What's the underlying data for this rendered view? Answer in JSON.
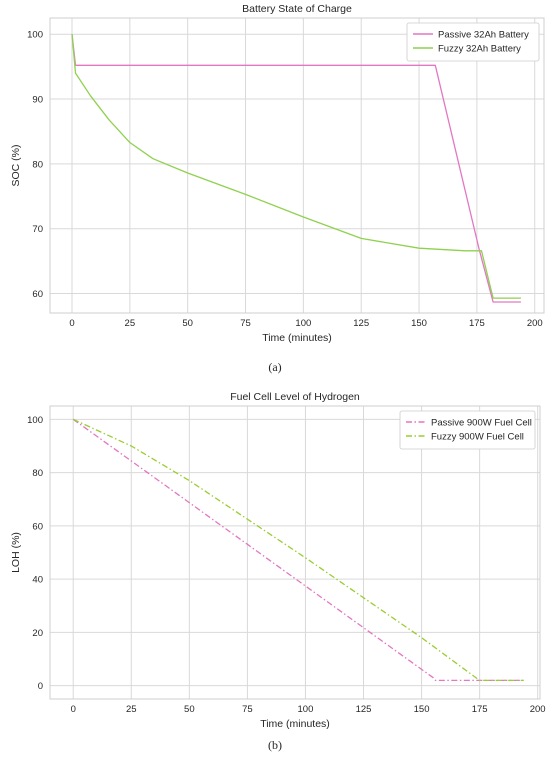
{
  "chart_data": [
    {
      "type": "line",
      "title": "Battery State of Charge",
      "xlabel": "Time (minutes)",
      "ylabel": "SOC (%)",
      "xlim": [
        -9.5,
        204
      ],
      "ylim": [
        57,
        102.5
      ],
      "xticks": [
        0,
        25,
        50,
        75,
        100,
        125,
        150,
        175,
        200
      ],
      "yticks": [
        60,
        70,
        80,
        90,
        100
      ],
      "grid": true,
      "legend": "top-right",
      "series": [
        {
          "name": "Passive 32Ah Battery",
          "color": "#e377c2",
          "style": "solid",
          "x": [
            0,
            1.5,
            157,
            176,
            182,
            194
          ],
          "y": [
            100,
            95.2,
            95.2,
            66.8,
            58.7,
            58.7
          ]
        },
        {
          "name": "Fuzzy 32Ah Battery",
          "color": "#8fd14f",
          "style": "solid",
          "x": [
            0,
            1.5,
            8,
            16,
            25,
            35,
            50,
            75,
            100,
            125,
            150,
            170,
            177,
            182,
            194
          ],
          "y": [
            100,
            94,
            90.5,
            86.8,
            83.3,
            80.8,
            78.6,
            75.3,
            71.8,
            68.5,
            67.0,
            66.6,
            66.6,
            59.3,
            59.3
          ]
        }
      ]
    },
    {
      "type": "line",
      "title": "Fuel Cell Level of Hydrogen",
      "xlabel": "Time (minutes)",
      "ylabel": "LOH (%)",
      "xlim": [
        -10,
        201
      ],
      "ylim": [
        -5,
        105
      ],
      "xticks": [
        0,
        25,
        50,
        75,
        100,
        125,
        150,
        175,
        200
      ],
      "yticks": [
        0,
        20,
        40,
        60,
        80,
        100
      ],
      "grid": true,
      "legend": "top-right",
      "series": [
        {
          "name": "Passive 900W Fuel Cell",
          "color": "#e377c2",
          "style": "dashdot",
          "x": [
            0,
            155,
            156,
            194
          ],
          "y": [
            100,
            3,
            2,
            2
          ]
        },
        {
          "name": "Fuzzy 900W Fuel Cell",
          "color": "#9acd32",
          "style": "dashdot",
          "x": [
            0,
            25,
            50,
            100,
            150,
            175,
            194
          ],
          "y": [
            100,
            90,
            77,
            48,
            18,
            2,
            2
          ]
        }
      ]
    }
  ],
  "captions": [
    "(a)",
    "(b)"
  ]
}
